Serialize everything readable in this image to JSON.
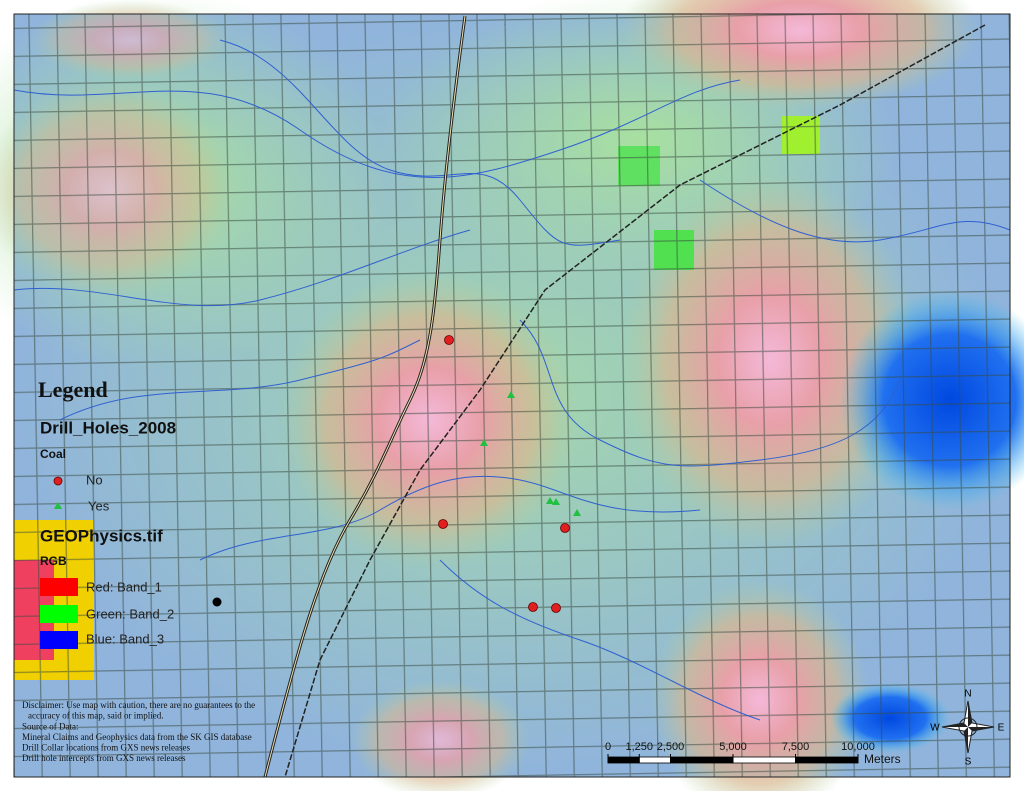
{
  "legend": {
    "title": "Legend",
    "layers": [
      {
        "name": "Drill_Holes_2008",
        "field": "Coal",
        "classes": [
          "No",
          "Yes"
        ]
      },
      {
        "name": "GEOPhysics.tif",
        "field": "RGB",
        "classes": [
          "Red:  Band_1",
          "Green: Band_2",
          "Blue:  Band_3"
        ]
      }
    ]
  },
  "disclaimer": [
    "Disclaimer: Use map with caution, there are no guarantees to the",
    "accuracy of this map, said or implied.",
    "Source of Data:",
    "Mineral Claims and Geophysics data from the SK GIS database",
    "Drill Collar locations from GXS news releases",
    "Drill hole intercepts from GXS news releases"
  ],
  "scale_bar": {
    "ticks": [
      0,
      {
        "value": 1250,
        "label": "1,250"
      },
      {
        "value": 2500,
        "label": "2,500"
      },
      {
        "value": 5000,
        "label": "5,000"
      },
      {
        "value": 7500,
        "label": "7,500"
      },
      {
        "value": 10000,
        "label": "10,000"
      }
    ],
    "unit": "Meters"
  },
  "compass": {
    "n": "N",
    "e": "E",
    "s": "S",
    "w": "W"
  }
}
